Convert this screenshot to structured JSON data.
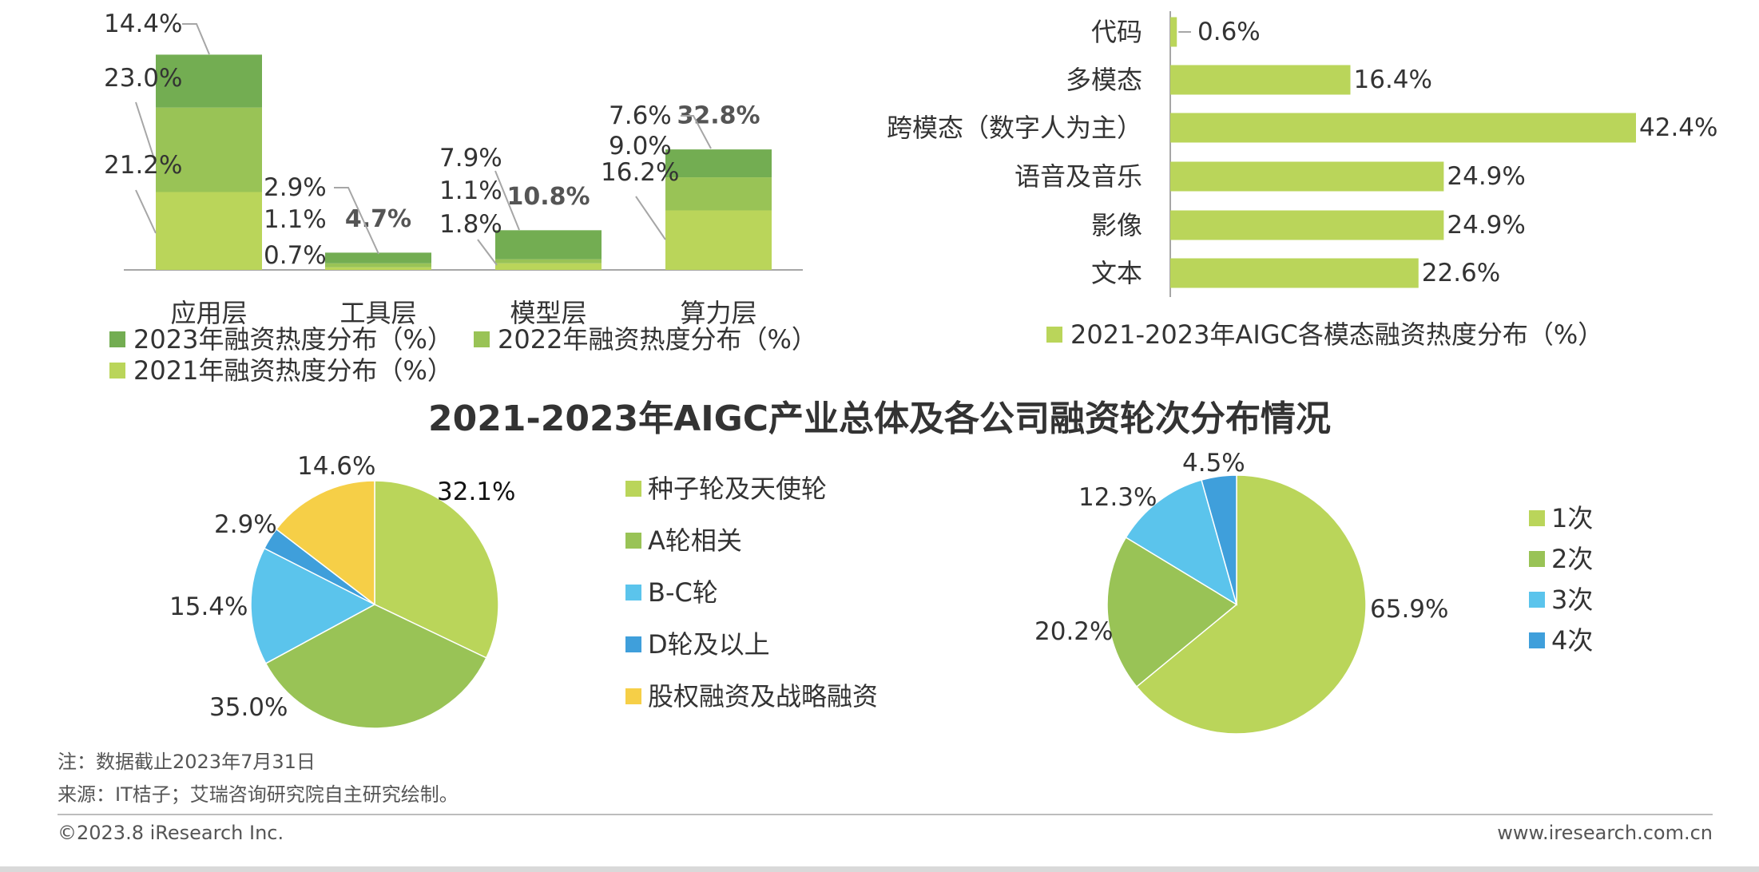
{
  "chart_data": [
    {
      "type": "bar",
      "stacked": true,
      "categories": [
        "应用层",
        "工具层",
        "模型层",
        "算力层"
      ],
      "totals": [
        "",
        "4.7%",
        "10.8%",
        "32.8%"
      ],
      "series": [
        {
          "name": "2021年融资热度分布（%）",
          "values": [
            21.2,
            0.7,
            1.8,
            16.2
          ],
          "labels": [
            "21.2%",
            "0.7%",
            "1.8%",
            "16.2%"
          ],
          "color": "#bad55a"
        },
        {
          "name": "2022年融资热度分布（%）",
          "values": [
            23.0,
            1.1,
            1.1,
            9.0
          ],
          "labels": [
            "23.0%",
            "1.1%",
            "1.1%",
            "9.0%"
          ],
          "color": "#99c356"
        },
        {
          "name": "2023年融资热度分布（%）",
          "values": [
            14.4,
            2.9,
            7.9,
            7.6
          ],
          "labels": [
            "14.4%",
            "2.9%",
            "7.9%",
            "7.6%"
          ],
          "color": "#73ad52"
        }
      ],
      "legend": "bottom"
    },
    {
      "type": "bar",
      "orientation": "horizontal",
      "categories": [
        "代码",
        "多模态",
        "跨模态（数字人为主）",
        "语音及音乐",
        "影像",
        "文本"
      ],
      "values": [
        0.6,
        16.4,
        42.4,
        24.9,
        24.9,
        22.6
      ],
      "labels": [
        "0.6%",
        "16.4%",
        "42.4%",
        "24.9%",
        "24.9%",
        "22.6%"
      ],
      "series_name": "2021-2023年AIGC各模态融资热度分布（%）",
      "color": "#bad55a",
      "legend": "bottom"
    },
    {
      "type": "pie",
      "title": "2021-2023年AIGC产业总体及各公司融资轮次分布情况",
      "categories": [
        "种子轮及天使轮",
        "A轮相关",
        "B-C轮",
        "D轮及以上",
        "股权融资及战略融资"
      ],
      "values": [
        32.1,
        35.0,
        15.4,
        2.9,
        14.6
      ],
      "labels": [
        "32.1%",
        "35.0%",
        "15.4%",
        "2.9%",
        "14.6%"
      ],
      "colors": [
        "#bad55a",
        "#99c356",
        "#5bc4ec",
        "#3f9fdb",
        "#f6cf47"
      ],
      "legend": "right"
    },
    {
      "type": "pie",
      "categories": [
        "1次",
        "2次",
        "3次",
        "4次"
      ],
      "values": [
        65.9,
        20.2,
        12.3,
        4.5
      ],
      "labels": [
        "65.9%",
        "20.2%",
        "12.3%",
        "4.5%"
      ],
      "colors": [
        "#bad55a",
        "#99c356",
        "#5bc4ec",
        "#3f9fdb"
      ],
      "legend": "right"
    }
  ],
  "page": {
    "title": "2021-2023年AIGC产业总体及各公司融资轮次分布情况",
    "note": "注：数据截止2023年7月31日",
    "source": "来源：IT桔子；艾瑞咨询研究院自主研究绘制。",
    "copyright": "©2023.8 iResearch Inc.",
    "website": "www.iresearch.com.cn"
  }
}
